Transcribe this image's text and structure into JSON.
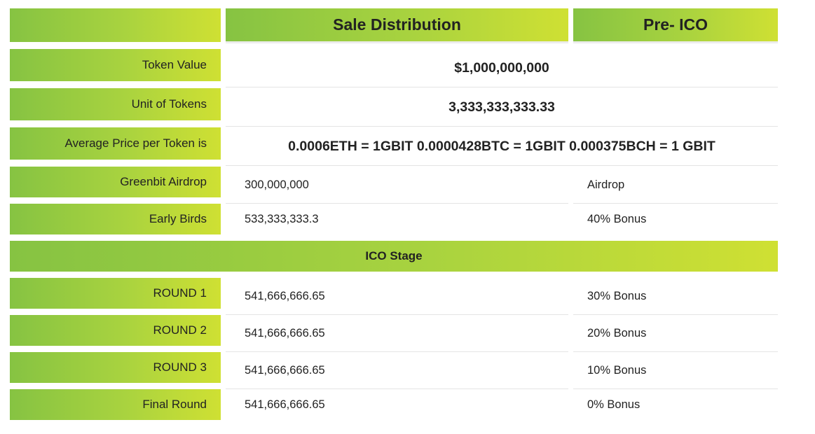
{
  "header": {
    "corner": "",
    "col1": "Sale Distribution",
    "col2": "Pre- ICO"
  },
  "rows": [
    {
      "label": "Token Value",
      "value": "$1,000,000,000"
    },
    {
      "label": "Unit of Tokens",
      "value": "3,333,333,333.33"
    },
    {
      "label": "Average Price per Token is",
      "value": "0.0006ETH = 1GBIT 0.0000428BTC = 1GBIT 0.000375BCH = 1 GBIT"
    },
    {
      "label": "Greenbit Airdrop",
      "value": "300,000,000",
      "note": "Airdrop"
    },
    {
      "label": "Early Birds",
      "value": "533,333,333.3",
      "note": "40% Bonus"
    }
  ],
  "stage_title": "ICO Stage",
  "rounds": [
    {
      "label": "ROUND 1",
      "value": "541,666,666.65",
      "note": "30% Bonus"
    },
    {
      "label": "ROUND 2",
      "value": "541,666,666.65",
      "note": "20% Bonus"
    },
    {
      "label": "ROUND 3",
      "value": "541,666,666.65",
      "note": "10% Bonus"
    },
    {
      "label": "Final Round",
      "value": "541,666,666.65",
      "note": "0% Bonus"
    }
  ],
  "colors": {
    "gradient_start": "#86c342",
    "gradient_end": "#cfe033"
  }
}
